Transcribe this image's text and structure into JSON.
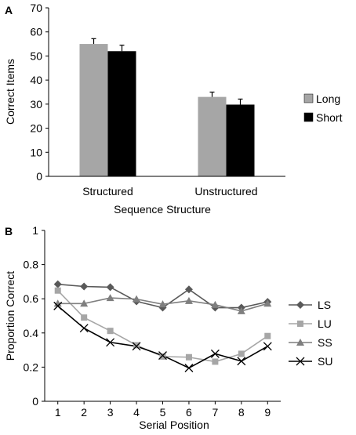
{
  "chart_data": [
    {
      "panel": "A",
      "type": "bar",
      "categories": [
        "Structured",
        "Unstructured"
      ],
      "series": [
        {
          "name": "Long",
          "values": [
            55,
            33
          ],
          "errors": [
            2.2,
            2.0
          ],
          "color": "#a6a6a6"
        },
        {
          "name": "Short",
          "values": [
            52,
            29.8
          ],
          "errors": [
            2.5,
            2.3
          ],
          "color": "#000000"
        }
      ],
      "xlabel": "Sequence Structure",
      "ylabel": "Correct Items",
      "ylim": [
        0,
        70
      ],
      "yticks": [
        0,
        10,
        20,
        30,
        40,
        50,
        60,
        70
      ],
      "grid": false,
      "legend": "right"
    },
    {
      "panel": "B",
      "type": "line",
      "x": [
        1,
        2,
        3,
        4,
        5,
        6,
        7,
        8,
        9
      ],
      "series": [
        {
          "name": "LS",
          "marker": "diamond",
          "color": "#595959",
          "values": [
            0.685,
            0.672,
            0.668,
            0.585,
            0.548,
            0.655,
            0.548,
            0.548,
            0.582
          ]
        },
        {
          "name": "LU",
          "marker": "square",
          "color": "#a6a6a6",
          "values": [
            0.648,
            0.49,
            0.412,
            0.328,
            0.262,
            0.258,
            0.232,
            0.278,
            0.382
          ]
        },
        {
          "name": "SS",
          "marker": "triangle",
          "color": "#7f7f7f",
          "values": [
            0.572,
            0.572,
            0.605,
            0.598,
            0.568,
            0.588,
            0.565,
            0.528,
            0.572
          ]
        },
        {
          "name": "SU",
          "marker": "x",
          "color": "#000000",
          "values": [
            0.558,
            0.428,
            0.345,
            0.322,
            0.268,
            0.195,
            0.278,
            0.235,
            0.322
          ]
        }
      ],
      "xlabel": "Serial Position",
      "ylabel": "Proportion Correct",
      "xticks": [
        1,
        2,
        3,
        4,
        5,
        6,
        7,
        8,
        9
      ],
      "ylim": [
        0,
        1
      ],
      "yticks": [
        "0",
        "0.2",
        "0.4",
        "0.6",
        "0.8",
        "1"
      ],
      "grid": false,
      "legend": "right"
    }
  ]
}
